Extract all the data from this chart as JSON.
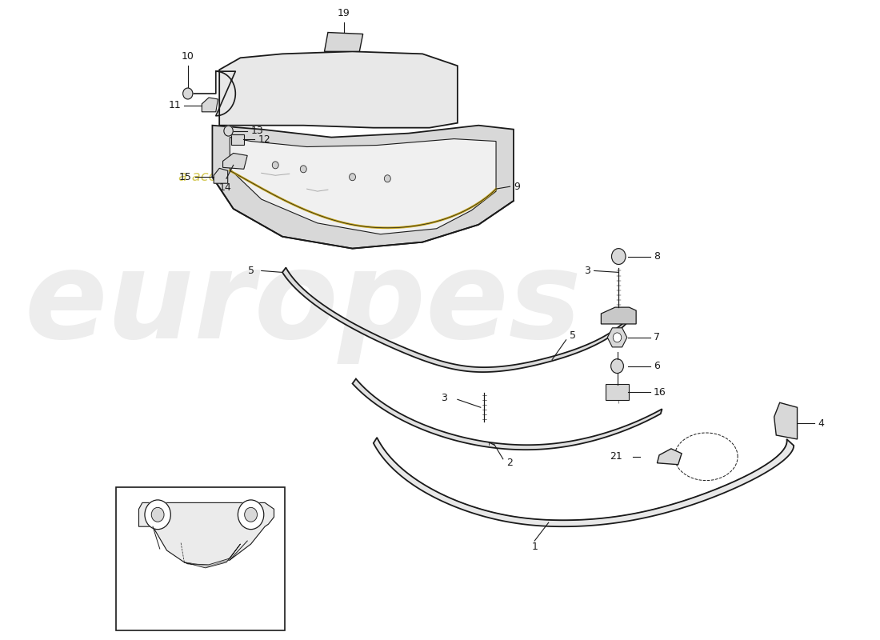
{
  "background_color": "#ffffff",
  "line_color": "#1a1a1a",
  "fill_light": "#e8e8e8",
  "fill_mid": "#d8d8d8",
  "fill_dark": "#c8c8c8",
  "watermark_grey": "#c0c0c0",
  "watermark_yellow": "#c8b820",
  "fig_width": 11.0,
  "fig_height": 8.0,
  "part1_label": "1",
  "part2_label": "2",
  "part3_label": "3",
  "part4_label": "4",
  "part5_label": "5",
  "part6_label": "6",
  "part7_label": "7",
  "part8_label": "8",
  "part9_label": "9",
  "part10_label": "10",
  "part11_label": "11",
  "part12_label": "12",
  "part13_label": "13",
  "part14_label": "14",
  "part15_label": "15",
  "part16_label": "16",
  "part19_label": "19",
  "part21_label": "21"
}
